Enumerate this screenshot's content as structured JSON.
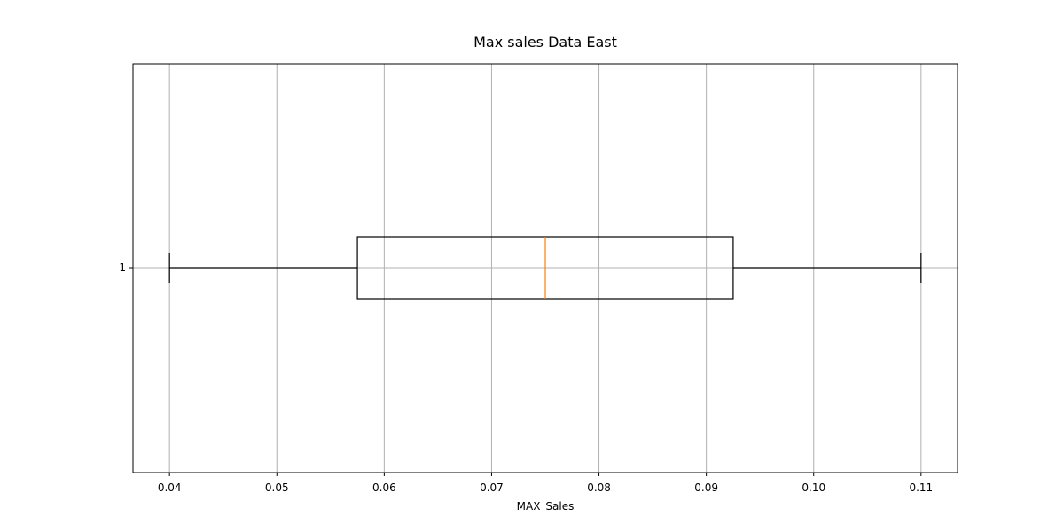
{
  "chart_data": {
    "type": "boxplot",
    "orientation": "horizontal",
    "title": "Max sales Data East",
    "xlabel": "MAX_Sales",
    "ylabel": "",
    "xlim": [
      0.0366,
      0.1134
    ],
    "x_ticks": [
      0.04,
      0.05,
      0.06,
      0.07,
      0.08,
      0.09,
      0.1,
      0.11
    ],
    "x_tick_labels": [
      "0.04",
      "0.05",
      "0.06",
      "0.07",
      "0.08",
      "0.09",
      "0.10",
      "0.11"
    ],
    "y_tick_labels": [
      "1"
    ],
    "grid": true,
    "boxes": [
      {
        "label": "1",
        "whisker_low": 0.04,
        "q1": 0.0575,
        "median": 0.075,
        "q3": 0.0925,
        "whisker_high": 0.11
      }
    ],
    "colors": {
      "box": "#000000",
      "median": "#ff7f0e",
      "grid": "#b0b0b0"
    }
  }
}
